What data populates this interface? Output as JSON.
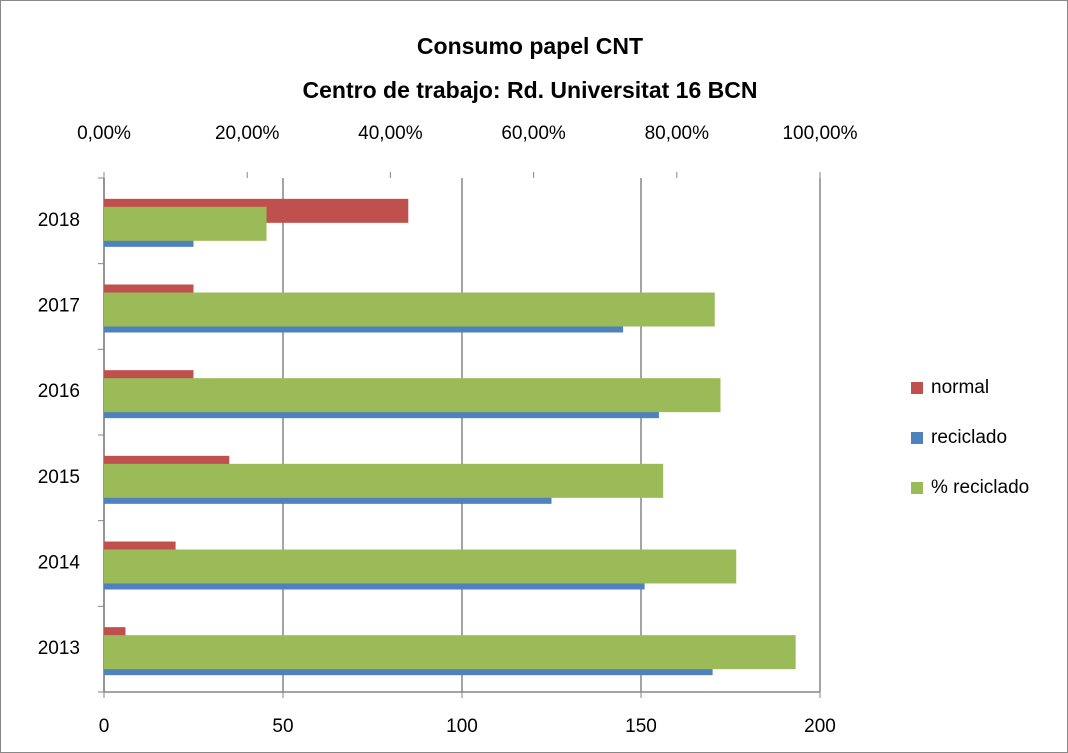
{
  "chart_data": {
    "type": "bar",
    "horizontal": true,
    "title": [
      "Consumo papel CNT",
      "Centro de trabajo: Rd. Universitat 16 BCN"
    ],
    "categories": [
      "2013",
      "2014",
      "2015",
      "2016",
      "2017",
      "2018"
    ],
    "series": [
      {
        "name": "normal",
        "color": "#c0504d",
        "values": [
          6,
          20,
          35,
          25,
          25,
          85
        ]
      },
      {
        "name": "reciclado",
        "color": "#4f81bd",
        "values": [
          170,
          151,
          125,
          155,
          145,
          25
        ]
      },
      {
        "name": "% reciclado",
        "color": "#9bbb59",
        "axis": "x2",
        "values": [
          96.6,
          88.3,
          78.1,
          86.1,
          85.3,
          22.7
        ]
      }
    ],
    "xlim": [
      0,
      200
    ],
    "xticks": [
      0,
      50,
      100,
      150,
      200
    ],
    "x2lim": [
      0,
      100
    ],
    "x2ticks": [
      {
        "value": 0,
        "label": "0,00%"
      },
      {
        "value": 20,
        "label": "20,00%"
      },
      {
        "value": 40,
        "label": "40,00%"
      },
      {
        "value": 60,
        "label": "60,00%"
      },
      {
        "value": 80,
        "label": "80,00%"
      },
      {
        "value": 100,
        "label": "100,00%"
      }
    ],
    "grid": true,
    "legend": "right"
  }
}
